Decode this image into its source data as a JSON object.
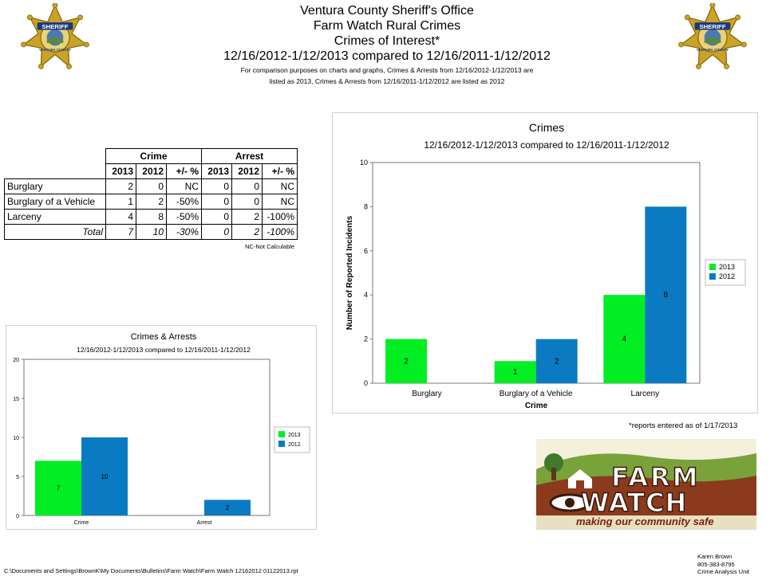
{
  "header": {
    "line1": "Ventura County Sheriff's Office",
    "line2": "Farm Watch Rural Crimes",
    "line3": "Crimes of Interest*",
    "line4": "12/16/2012-1/12/2013 compared to 12/16/2011-1/12/2012",
    "note1": "For comparison purposes on charts and graphs, Crimes & Arrests from 12/16/2012-1/12/2013 are",
    "note2": "listed as 2013, Crimes & Arrests from 12/16/2011-1/12/2012 are listed as 2012"
  },
  "badge": {
    "text_top": "SHERIFF",
    "text_bottom": "VENTURA COUNTY",
    "color": "#c9a227"
  },
  "table": {
    "group_headers": [
      "Crime",
      "Arrest"
    ],
    "col_headers": [
      "2013",
      "2012",
      "+/- %",
      "2013",
      "2012",
      "+/- %"
    ],
    "rows": [
      {
        "label": "Burglary",
        "values": [
          "2",
          "0",
          "NC",
          "0",
          "0",
          "NC"
        ]
      },
      {
        "label": "Burglary of a Vehicle",
        "values": [
          "1",
          "2",
          "-50%",
          "0",
          "0",
          "NC"
        ]
      },
      {
        "label": "Larceny",
        "values": [
          "4",
          "8",
          "-50%",
          "0",
          "2",
          "-100%"
        ]
      }
    ],
    "total": {
      "label": "Total",
      "values": [
        "7",
        "10",
        "-30%",
        "0",
        "2",
        "-100%"
      ]
    },
    "footnote": "NC-Not Calculable"
  },
  "chart_data": [
    {
      "type": "bar",
      "title": "Crimes",
      "subtitle": "12/16/2012-1/12/2013 compared to 12/16/2011-1/12/2012",
      "xlabel": "Crime",
      "ylabel": "Number of Reported Incidents",
      "categories": [
        "Burglary",
        "Burglary of a Vehicle",
        "Larceny"
      ],
      "series": [
        {
          "name": "2013",
          "values": [
            2,
            1,
            4
          ],
          "color": "#00ee22"
        },
        {
          "name": "2012",
          "values": [
            0,
            2,
            8
          ],
          "color": "#0a7bc2"
        }
      ],
      "ylim": [
        0,
        10
      ],
      "yticks": [
        0,
        2,
        4,
        6,
        8,
        10
      ],
      "legend": "right",
      "data_labels": true
    },
    {
      "type": "bar",
      "title": "Crimes & Arrests",
      "subtitle": "12/16/2012-1/12/2013 compared to 12/16/2011-1/12/2012",
      "xlabel": "",
      "ylabel": "",
      "categories": [
        "Crime",
        "Arrest"
      ],
      "series": [
        {
          "name": "2013",
          "values": [
            7,
            0
          ],
          "color": "#00ee22"
        },
        {
          "name": "2012",
          "values": [
            10,
            2
          ],
          "color": "#0a7bc2"
        }
      ],
      "ylim": [
        0,
        20
      ],
      "yticks": [
        0,
        5,
        10,
        15,
        20
      ],
      "legend": "right",
      "data_labels": true
    }
  ],
  "asof": "*reports entered as of 1/17/2013",
  "logo": {
    "line1": "FARM",
    "line2": "WATCH",
    "tagline": "making our community safe"
  },
  "footer": {
    "path": "C:\\Documents and Settings\\BrownK\\My Documents\\Bulletins\\Farm Watch\\Farm Watch 12162012 01122013.rpt",
    "contact_name": "Karen Brown",
    "contact_phone": "805-383-8795",
    "contact_unit": "Crime Analysis Unit"
  }
}
